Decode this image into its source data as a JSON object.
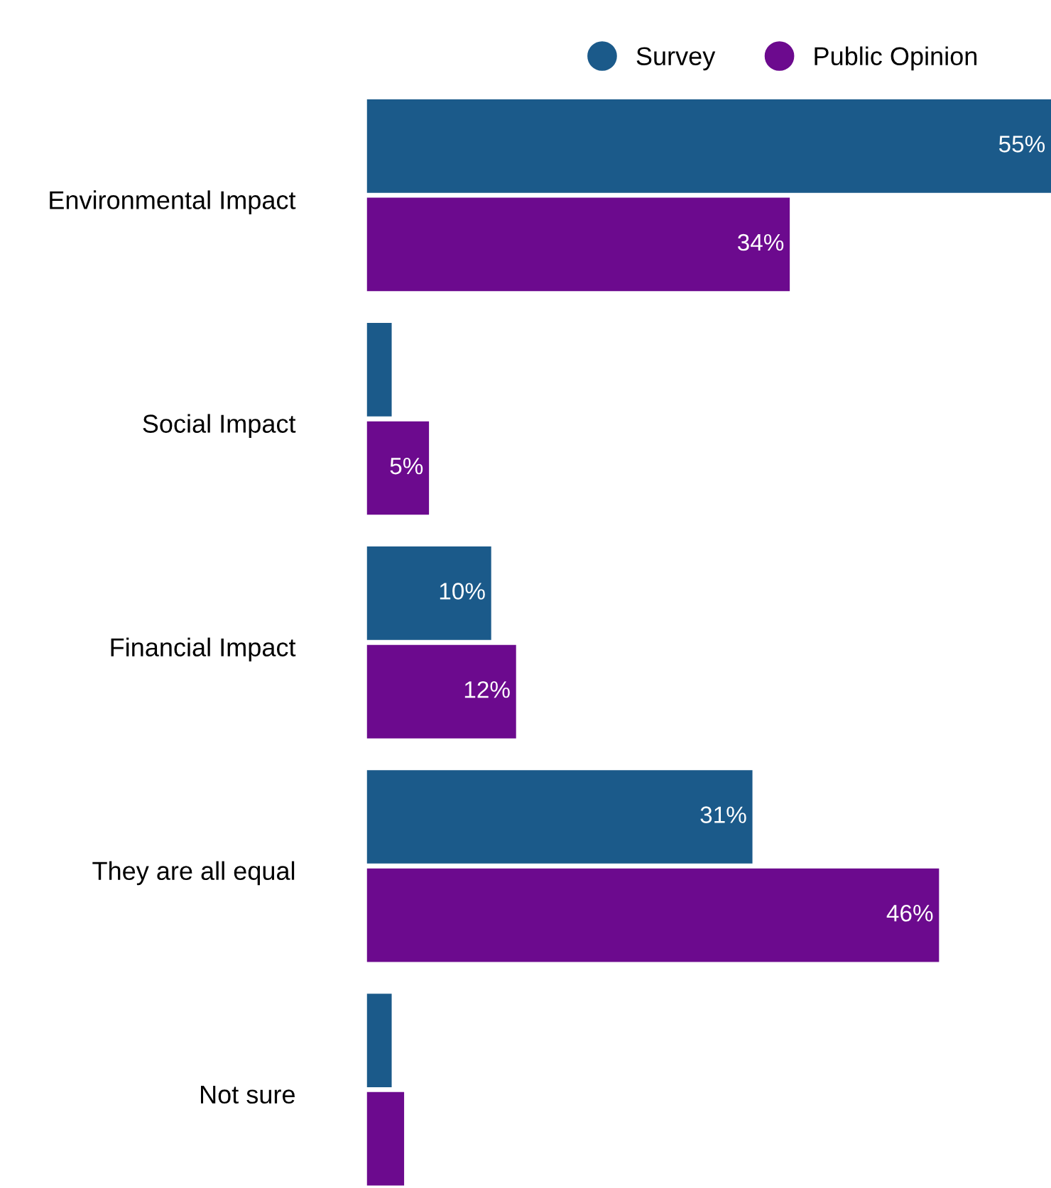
{
  "chart_data": {
    "type": "bar",
    "orientation": "horizontal",
    "categories": [
      "Environmental Impact",
      "Social Impact",
      "Financial Impact",
      "They are all equal",
      "Not sure"
    ],
    "series": [
      {
        "name": "Survey",
        "color": "#1b5a8a",
        "values": [
          55,
          2,
          10,
          31,
          2
        ],
        "value_labels": [
          "55%",
          null,
          "10%",
          "31%",
          null
        ]
      },
      {
        "name": "Public Opinion",
        "color": "#6c0a8e",
        "values": [
          34,
          5,
          12,
          46,
          3
        ],
        "value_labels": [
          "34%",
          "5%",
          "12%",
          "46%",
          null
        ]
      }
    ],
    "legend": "top",
    "grid": false,
    "tick_labels": "y"
  }
}
